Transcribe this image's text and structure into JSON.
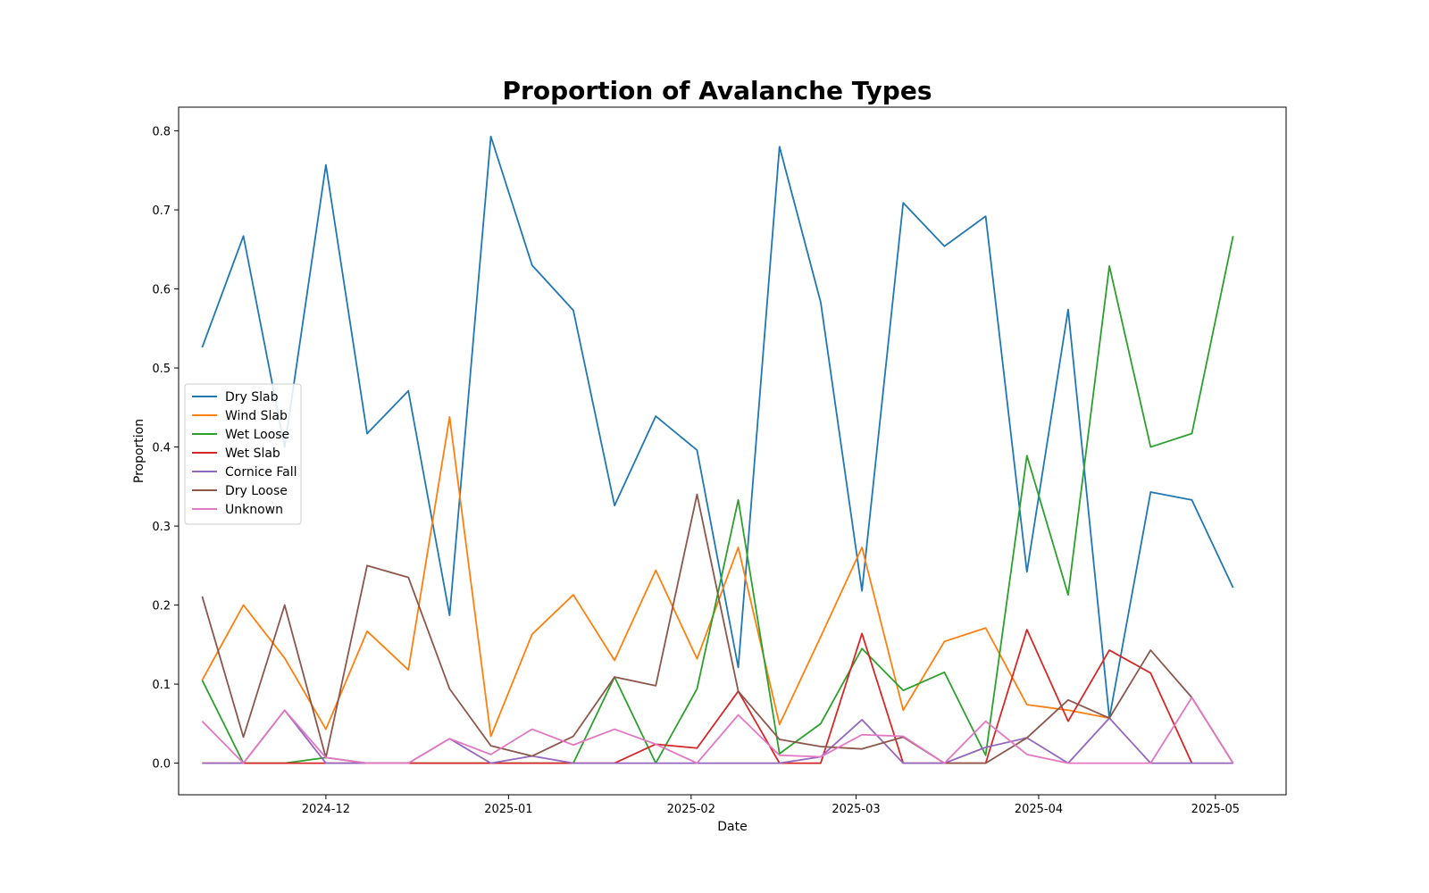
{
  "chart_data": {
    "type": "line",
    "title": "Proportion of Avalanche Types",
    "xlabel": "Date",
    "ylabel": "Proportion",
    "ylim": [
      -0.04,
      0.83
    ],
    "xlim": [
      "2024-11-06",
      "2025-05-13"
    ],
    "grid": false,
    "legend_position": "center-left",
    "x_ticks": [
      "2024-12-01",
      "2025-01-01",
      "2025-02-01",
      "2025-03-01",
      "2025-04-01",
      "2025-05-01"
    ],
    "x_tick_labels": [
      "2024-12",
      "2025-01",
      "2025-02",
      "2025-03",
      "2025-04",
      "2025-05"
    ],
    "y_ticks": [
      0.0,
      0.1,
      0.2,
      0.3,
      0.4,
      0.5,
      0.6,
      0.7,
      0.8
    ],
    "y_tick_labels": [
      "0.0",
      "0.1",
      "0.2",
      "0.3",
      "0.4",
      "0.5",
      "0.6",
      "0.7",
      "0.8"
    ],
    "x": [
      "2024-11-10",
      "2024-11-17",
      "2024-11-24",
      "2024-12-01",
      "2024-12-08",
      "2024-12-15",
      "2024-12-22",
      "2024-12-29",
      "2025-01-05",
      "2025-01-12",
      "2025-01-19",
      "2025-01-26",
      "2025-02-02",
      "2025-02-09",
      "2025-02-16",
      "2025-02-23",
      "2025-03-02",
      "2025-03-09",
      "2025-03-16",
      "2025-03-23",
      "2025-03-30",
      "2025-04-06",
      "2025-04-13",
      "2025-04-20",
      "2025-04-27",
      "2025-05-04"
    ],
    "series": [
      {
        "name": "Dry Slab",
        "color": "#1f77b4",
        "values": [
          0.526,
          0.667,
          0.4,
          0.757,
          0.417,
          0.471,
          0.187,
          0.793,
          0.63,
          0.573,
          0.326,
          0.439,
          0.396,
          0.121,
          0.78,
          0.583,
          0.218,
          0.709,
          0.654,
          0.692,
          0.242,
          0.574,
          0.057,
          0.343,
          0.333,
          0.222
        ]
      },
      {
        "name": "Wind Slab",
        "color": "#ff7f0e",
        "values": [
          0.105,
          0.2,
          0.133,
          0.043,
          0.167,
          0.118,
          0.438,
          0.034,
          0.163,
          0.213,
          0.13,
          0.244,
          0.132,
          0.273,
          0.049,
          0.16,
          0.273,
          0.067,
          0.154,
          0.171,
          0.074,
          0.067,
          0.057,
          null,
          null,
          null
        ]
      },
      {
        "name": "Wet Loose",
        "color": "#2ca02c",
        "values": [
          0.105,
          0.0,
          0.0,
          0.007,
          0.0,
          0.0,
          0.0,
          0.0,
          0.0,
          0.0,
          0.109,
          0.0,
          0.094,
          0.333,
          0.012,
          0.05,
          0.145,
          0.092,
          0.115,
          0.01,
          0.389,
          0.213,
          0.629,
          0.4,
          0.417,
          0.667
        ]
      },
      {
        "name": "Wet Slab",
        "color": "#d62728",
        "values": [
          0.0,
          0.0,
          0.0,
          0.0,
          0.0,
          0.0,
          0.0,
          0.0,
          0.0,
          0.0,
          0.0,
          0.024,
          0.019,
          0.091,
          0.0,
          0.0,
          0.164,
          0.0,
          0.0,
          0.0,
          0.169,
          0.053,
          0.143,
          0.114,
          0.0,
          null
        ]
      },
      {
        "name": "Cornice Fall",
        "color": "#9467bd",
        "values": [
          0.0,
          0.0,
          0.067,
          0.0,
          0.0,
          0.0,
          0.031,
          0.0,
          0.009,
          0.0,
          0.0,
          0.0,
          0.0,
          0.0,
          0.0,
          0.008,
          0.055,
          0.0,
          0.0,
          0.02,
          0.032,
          0.0,
          0.057,
          0.0,
          0.0,
          0.0
        ]
      },
      {
        "name": "Dry Loose",
        "color": "#8c564b",
        "values": [
          0.211,
          0.033,
          0.2,
          0.007,
          0.25,
          0.235,
          0.094,
          0.022,
          0.009,
          0.034,
          0.109,
          0.098,
          0.34,
          0.091,
          0.03,
          0.021,
          0.018,
          0.033,
          0.0,
          0.0,
          0.032,
          0.08,
          0.057,
          0.143,
          0.083,
          0.0
        ]
      },
      {
        "name": "Unknown",
        "color": "#e377c2",
        "values": [
          0.053,
          0.0,
          0.067,
          0.007,
          0.0,
          0.0,
          0.031,
          0.011,
          0.043,
          0.023,
          0.043,
          0.024,
          0.0,
          0.061,
          0.01,
          0.008,
          0.036,
          0.034,
          0.0,
          0.053,
          0.011,
          0.0,
          0.0,
          0.0,
          0.083,
          0.0
        ]
      }
    ]
  }
}
